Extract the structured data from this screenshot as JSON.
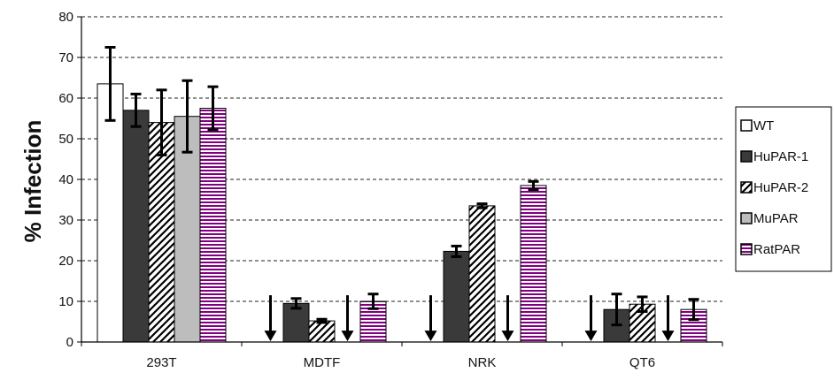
{
  "chart_data": {
    "type": "bar",
    "title": "",
    "xlabel": "",
    "ylabel": "% Infection",
    "ylim": [
      0,
      80
    ],
    "yticks": [
      0,
      10,
      20,
      30,
      40,
      50,
      60,
      70,
      80
    ],
    "grid": "dashed horizontal",
    "legend_position": "right",
    "categories": [
      "293T",
      "MDTF",
      "NRK",
      "QT6"
    ],
    "series": [
      {
        "name": "WT",
        "pattern": "white",
        "color": "#ffffff",
        "values": [
          63.5,
          0,
          0,
          0
        ],
        "errors": [
          9,
          null,
          null,
          null
        ],
        "arrows": [
          false,
          true,
          true,
          true
        ]
      },
      {
        "name": "HuPAR-1",
        "pattern": "solid",
        "color": "#3a3a3a",
        "values": [
          57,
          9.5,
          22.3,
          8
        ],
        "errors": [
          4,
          1.2,
          1.3,
          3.8
        ],
        "arrows": [
          false,
          false,
          false,
          false
        ]
      },
      {
        "name": "HuPAR-2",
        "pattern": "diagonal",
        "color": "#000000",
        "values": [
          54,
          5.2,
          33.5,
          9.3
        ],
        "errors": [
          8,
          0.4,
          0.5,
          1.8
        ],
        "arrows": [
          false,
          false,
          false,
          false
        ]
      },
      {
        "name": "MuPAR",
        "pattern": "solid",
        "color": "#bdbdbd",
        "values": [
          55.5,
          0,
          0,
          0
        ],
        "errors": [
          8.8,
          null,
          null,
          null
        ],
        "arrows": [
          false,
          true,
          true,
          true
        ]
      },
      {
        "name": "RatPAR",
        "pattern": "horizontal-stripes",
        "color": "#800080",
        "values": [
          57.5,
          10,
          38.5,
          8
        ],
        "errors": [
          5.3,
          1.8,
          1,
          2.5
        ],
        "arrows": [
          false,
          false,
          false,
          false
        ]
      }
    ]
  }
}
